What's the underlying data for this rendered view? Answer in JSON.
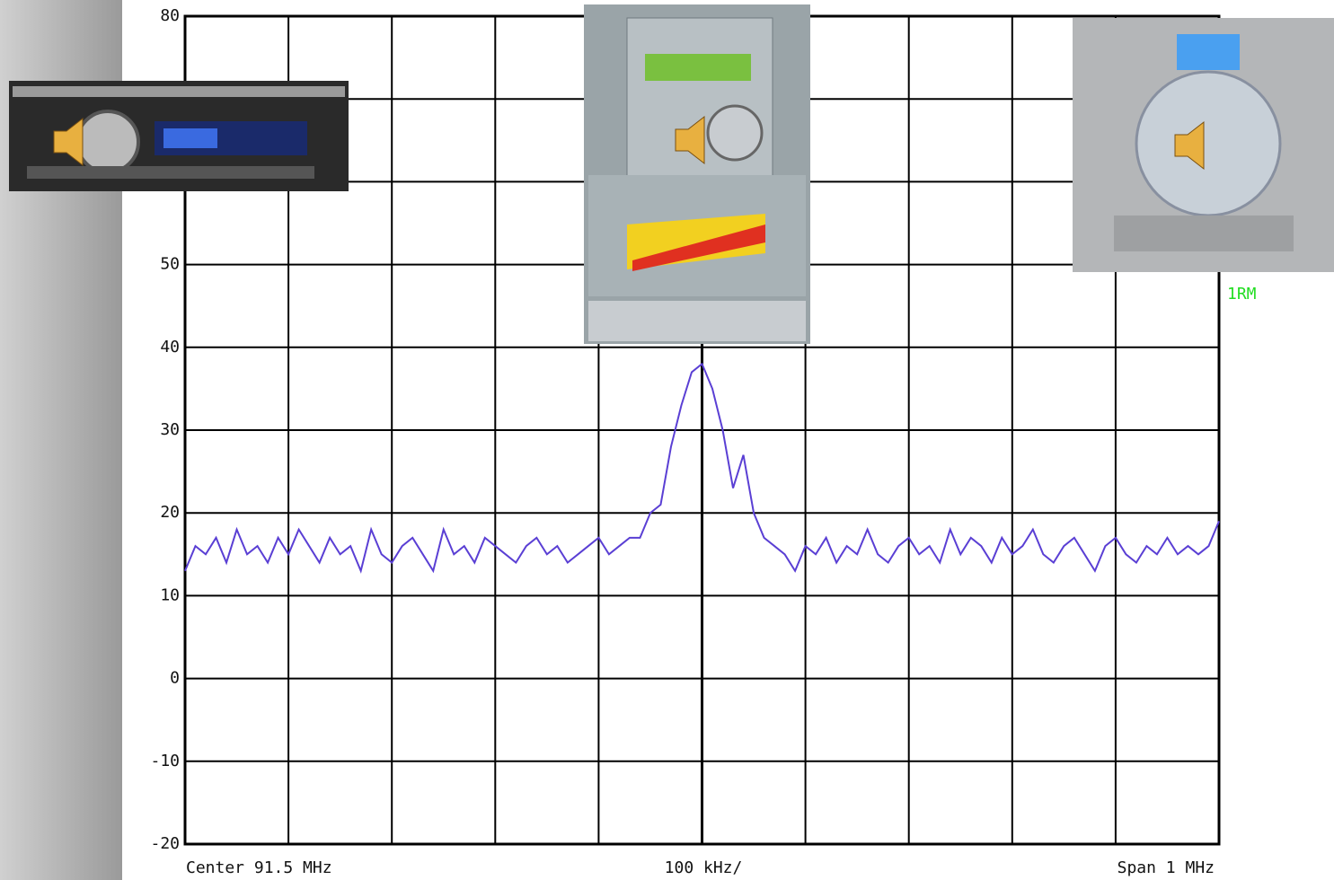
{
  "chart_data": {
    "type": "line",
    "x_center_label": "Center 91.5 MHz",
    "x_div_label": "100 kHz/",
    "x_span_label": "Span 1 MHz",
    "marker_label": "1RM",
    "xlim": [
      91.0,
      92.0
    ],
    "xticks": [
      91.0,
      91.1,
      91.2,
      91.3,
      91.4,
      91.5,
      91.6,
      91.7,
      91.8,
      91.9,
      92.0
    ],
    "ylim": [
      -20,
      80
    ],
    "yticks": [
      -20,
      -10,
      0,
      10,
      20,
      30,
      40,
      50,
      60,
      70,
      80
    ],
    "grid": true,
    "x": [
      91.0,
      91.01,
      91.02,
      91.03,
      91.04,
      91.05,
      91.06,
      91.07,
      91.08,
      91.09,
      91.1,
      91.11,
      91.12,
      91.13,
      91.14,
      91.15,
      91.16,
      91.17,
      91.18,
      91.19,
      91.2,
      91.21,
      91.22,
      91.23,
      91.24,
      91.25,
      91.26,
      91.27,
      91.28,
      91.29,
      91.3,
      91.31,
      91.32,
      91.33,
      91.34,
      91.35,
      91.36,
      91.37,
      91.38,
      91.39,
      91.4,
      91.41,
      91.42,
      91.43,
      91.44,
      91.45,
      91.46,
      91.47,
      91.48,
      91.49,
      91.5,
      91.51,
      91.52,
      91.53,
      91.54,
      91.55,
      91.56,
      91.57,
      91.58,
      91.59,
      91.6,
      91.61,
      91.62,
      91.63,
      91.64,
      91.65,
      91.66,
      91.67,
      91.68,
      91.69,
      91.7,
      91.71,
      91.72,
      91.73,
      91.74,
      91.75,
      91.76,
      91.77,
      91.78,
      91.79,
      91.8,
      91.81,
      91.82,
      91.83,
      91.84,
      91.85,
      91.86,
      91.87,
      91.88,
      91.89,
      91.9,
      91.91,
      91.92,
      91.93,
      91.94,
      91.95,
      91.96,
      91.97,
      91.98,
      91.99,
      92.0
    ],
    "series": [
      {
        "color": "#5a3fd4",
        "values": [
          13,
          16,
          15,
          17,
          14,
          18,
          15,
          16,
          14,
          17,
          15,
          18,
          16,
          14,
          17,
          15,
          16,
          13,
          18,
          15,
          14,
          16,
          17,
          15,
          13,
          18,
          15,
          16,
          14,
          17,
          16,
          15,
          14,
          16,
          17,
          15,
          16,
          14,
          15,
          16,
          17,
          15,
          16,
          17,
          17,
          20,
          21,
          28,
          33,
          37,
          38,
          35,
          30,
          23,
          27,
          20,
          17,
          16,
          15,
          13,
          16,
          15,
          17,
          14,
          16,
          15,
          18,
          15,
          14,
          16,
          17,
          15,
          16,
          14,
          18,
          15,
          17,
          16,
          14,
          17,
          15,
          16,
          18,
          15,
          14,
          16,
          17,
          15,
          13,
          16,
          17,
          15,
          14,
          16,
          15,
          17,
          15,
          16,
          15,
          16,
          19
        ]
      }
    ]
  }
}
